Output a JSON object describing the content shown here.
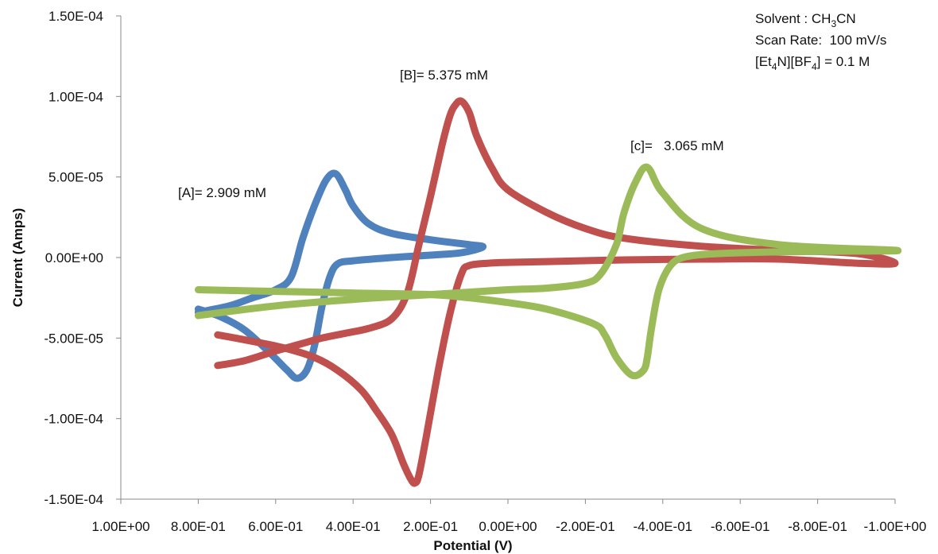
{
  "chart_data": {
    "type": "line",
    "title": "",
    "xlabel": "Potential (V)",
    "ylabel": "Current (Amps)",
    "xlim": [
      1.0,
      -1.0
    ],
    "ylim": [
      -0.00015,
      0.00015
    ],
    "x_axis_reversed": true,
    "grid": false,
    "legend": "none",
    "x_ticks": [
      1.0,
      0.8,
      0.6,
      0.4,
      0.2,
      0.0,
      -0.2,
      -0.4,
      -0.6,
      -0.8,
      -1.0
    ],
    "x_tick_labels": [
      "1.00E+00",
      "8.00E-01",
      "6.00E-01",
      "4.00E-01",
      "2.00E-01",
      "0.00E+00",
      "-2.00E-01",
      "-4.00E-01",
      "-6.00E-01",
      "-8.00E-01",
      "-1.00E+00"
    ],
    "y_ticks": [
      0.00015,
      0.0001,
      5e-05,
      0.0,
      -5e-05,
      -0.0001,
      -0.00015
    ],
    "y_tick_labels": [
      "1.50E-04",
      "1.00E-04",
      "5.00E-05",
      "0.00E+00",
      "-5.00E-05",
      "-1.00E-04",
      "-1.50E-04"
    ],
    "series": [
      {
        "color": "#4F81BD",
        "x": [
          0.8,
          0.74,
          0.68,
          0.62,
          0.57,
          0.545,
          0.52,
          0.5,
          0.48,
          0.46,
          0.44,
          0.4,
          0.3,
          0.2,
          0.12,
          0.065,
          0.1,
          0.2,
          0.3,
          0.36,
          0.4,
          0.42,
          0.445,
          0.47,
          0.5,
          0.53,
          0.56,
          0.6,
          0.66,
          0.72,
          0.8
        ],
        "y": [
          -3.2e-05,
          -3.7e-05,
          -4.5e-05,
          -5.8e-05,
          -7e-05,
          -7.5e-05,
          -7e-05,
          -5.5e-05,
          -3e-05,
          -1.2e-05,
          -4e-06,
          -2e-06,
          0.0,
          1.5e-06,
          3e-06,
          6.5e-06,
          8e-06,
          1.1e-05,
          1.5e-05,
          2.1e-05,
          3.2e-05,
          4.2e-05,
          5.2e-05,
          4.8e-05,
          3.2e-05,
          1.2e-05,
          -1.2e-05,
          -2e-05,
          -2.5e-05,
          -3e-05,
          -3.4e-05
        ]
      },
      {
        "color": "#C0504D",
        "x": [
          0.75,
          0.66,
          0.58,
          0.5,
          0.44,
          0.38,
          0.34,
          0.3,
          0.27,
          0.25,
          0.24,
          0.23,
          0.21,
          0.18,
          0.15,
          0.12,
          0.1,
          0.05,
          0.0,
          -0.1,
          -0.3,
          -0.5,
          -0.7,
          -0.9,
          -1.0,
          -0.9,
          -0.7,
          -0.5,
          -0.3,
          -0.2,
          -0.1,
          0.0,
          0.04,
          0.08,
          0.1,
          0.12,
          0.135,
          0.15,
          0.17,
          0.2,
          0.23,
          0.26,
          0.3,
          0.36,
          0.42,
          0.48,
          0.54,
          0.6,
          0.68,
          0.75
        ],
        "y": [
          -4.8e-05,
          -5.2e-05,
          -5.6e-05,
          -6.2e-05,
          -7e-05,
          -8.2e-05,
          -9.5e-05,
          -0.00011,
          -0.000128,
          -0.000138,
          -0.00014,
          -0.000135,
          -0.00011,
          -7e-05,
          -3.5e-05,
          -1e-05,
          -5e-06,
          -3.5e-06,
          -3e-06,
          -2.5e-06,
          -1.5e-06,
          -1e-06,
          -1e-06,
          -3.5e-06,
          -3.5e-06,
          2.5e-06,
          4.5e-06,
          7e-06,
          1.2e-05,
          1.8e-05,
          2.8e-05,
          4.2e-05,
          5.5e-05,
          7.5e-05,
          9e-05,
          9.7e-05,
          9.5e-05,
          8.8e-05,
          7e-05,
          3.8e-05,
          8e-06,
          -2.2e-05,
          -3.8e-05,
          -4.4e-05,
          -4.7e-05,
          -5e-05,
          -5.4e-05,
          -5.8e-05,
          -6.4e-05,
          -6.7e-05
        ]
      },
      {
        "color": "#9BBB59",
        "x": [
          0.8,
          0.6,
          0.4,
          0.2,
          0.0,
          -0.1,
          -0.2,
          -0.24,
          -0.28,
          -0.3,
          -0.33,
          -0.36,
          -0.4,
          -0.5,
          -0.7,
          -1.0,
          -0.9,
          -0.7,
          -0.55,
          -0.46,
          -0.42,
          -0.39,
          -0.37,
          -0.36,
          -0.35,
          -0.32,
          -0.28,
          -0.25,
          -0.22,
          -0.1,
          0.0,
          0.1,
          0.2,
          0.4,
          0.6,
          0.8
        ],
        "y": [
          -3.6e-05,
          -3e-05,
          -2.6e-05,
          -2.3e-05,
          -2e-05,
          -1.9e-05,
          -1.6e-05,
          -1e-05,
          8e-06,
          2.8e-05,
          4.7e-05,
          5.6e-05,
          4e-05,
          1.8e-05,
          8e-06,
          4.5e-06,
          4e-06,
          3.5e-06,
          2.5e-06,
          5e-07,
          -5e-06,
          -2e-05,
          -4.5e-05,
          -6.2e-05,
          -7e-05,
          -7.3e-05,
          -6.2e-05,
          -4.8e-05,
          -4.1e-05,
          -3.2e-05,
          -2.8e-05,
          -2.5e-05,
          -2.3e-05,
          -2.2e-05,
          -2.1e-05,
          -2e-05
        ]
      }
    ]
  },
  "annotations": {
    "label_a": "[A]= 2.909 mM",
    "label_b": "[B]= 5.375 mM",
    "label_c": "[c]=   3.065 mM",
    "solvent_prefix": "Solvent : CH",
    "solvent_sub": "3",
    "solvent_suffix": "CN",
    "scan_rate": "Scan Rate:  100 mV/s",
    "electrolyte_1": "[Et",
    "electrolyte_sub1": "4",
    "electrolyte_2": "N][BF",
    "electrolyte_sub2": "4",
    "electrolyte_3": "] = 0.1 M"
  }
}
